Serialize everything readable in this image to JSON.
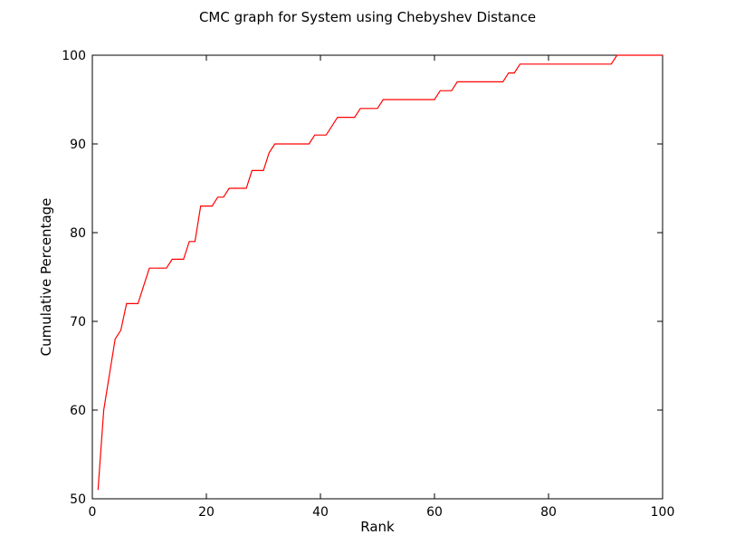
{
  "chart_data": {
    "type": "line",
    "title": "CMC graph for System using Chebyshev Distance",
    "xlabel": "Rank",
    "ylabel": "Cumulative Percentage",
    "xlim": [
      0,
      100
    ],
    "ylim": [
      50,
      100
    ],
    "xticks": [
      0,
      20,
      40,
      60,
      80,
      100
    ],
    "yticks": [
      50,
      60,
      70,
      80,
      90,
      100
    ],
    "grid": false,
    "legend": "none",
    "series": [
      {
        "color": "#ff0000",
        "x": [
          1,
          2,
          3,
          4,
          5,
          6,
          7,
          8,
          9,
          10,
          11,
          12,
          13,
          14,
          15,
          16,
          17,
          18,
          19,
          20,
          21,
          22,
          23,
          24,
          25,
          26,
          27,
          28,
          29,
          30,
          31,
          32,
          33,
          34,
          35,
          36,
          37,
          38,
          39,
          40,
          41,
          42,
          43,
          44,
          45,
          46,
          47,
          48,
          49,
          50,
          51,
          52,
          53,
          54,
          55,
          56,
          57,
          58,
          59,
          60,
          61,
          62,
          63,
          64,
          65,
          66,
          67,
          68,
          69,
          70,
          71,
          72,
          73,
          74,
          75,
          76,
          77,
          78,
          79,
          80,
          81,
          82,
          83,
          84,
          85,
          86,
          87,
          88,
          89,
          90,
          91,
          92,
          93,
          94,
          95,
          96,
          97,
          98,
          99,
          100
        ],
        "y": [
          51,
          60,
          64,
          68,
          69,
          72,
          72,
          72,
          74,
          76,
          76,
          76,
          76,
          77,
          77,
          77,
          79,
          79,
          83,
          83,
          83,
          84,
          84,
          85,
          85,
          85,
          85,
          87,
          87,
          87,
          89,
          90,
          90,
          90,
          90,
          90,
          90,
          90,
          91,
          91,
          91,
          92,
          93,
          93,
          93,
          93,
          94,
          94,
          94,
          94,
          95,
          95,
          95,
          95,
          95,
          95,
          95,
          95,
          95,
          95,
          96,
          96,
          96,
          97,
          97,
          97,
          97,
          97,
          97,
          97,
          97,
          97,
          98,
          98,
          99,
          99,
          99,
          99,
          99,
          99,
          99,
          99,
          99,
          99,
          99,
          99,
          99,
          99,
          99,
          99,
          99,
          100,
          100,
          100,
          100,
          100,
          100,
          100,
          100,
          100
        ]
      }
    ]
  }
}
